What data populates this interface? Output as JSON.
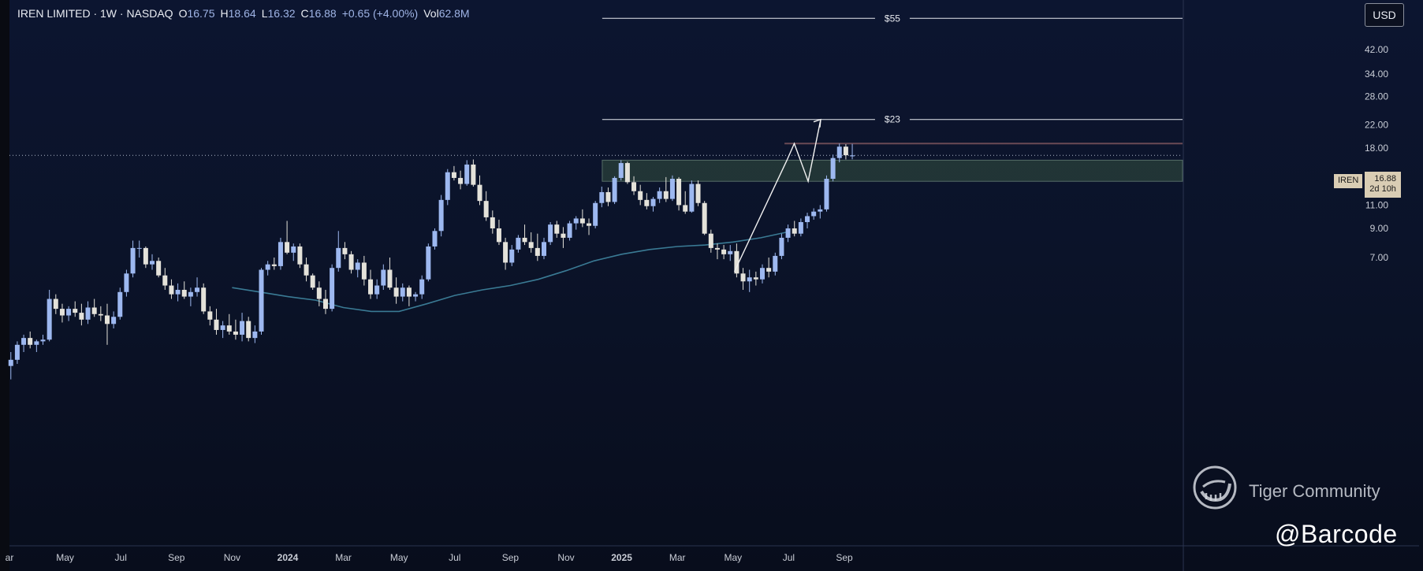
{
  "legend": {
    "name": "IREN LIMITED · 1W · NASDAQ",
    "o_label": "O",
    "o": "16.75",
    "h_label": "H",
    "h": "18.64",
    "l_label": "L",
    "l": "16.32",
    "c_label": "C",
    "c": "16.88",
    "chg": "+0.65 (+4.00%)",
    "vol_label": "Vol",
    "vol": "62.8M"
  },
  "currency_button": "USD",
  "price_badge": {
    "ticker": "IREN",
    "price": "16.88",
    "countdown": "2d 10h"
  },
  "watermark": {
    "brand": "Tiger Community",
    "handle": "@Barcode"
  },
  "colors": {
    "bull": "#9db8f0",
    "bear": "#e4e2da",
    "ema": "#3a7a94",
    "zone": "#35503f",
    "zone_edge": "#6a4a55"
  },
  "chart_data": {
    "type": "candlestick",
    "symbol": "IREN",
    "interval": "1W",
    "y_scale": "log",
    "ylim": [
      1.0,
      60
    ],
    "y_ticks": [
      42,
      34,
      28,
      22,
      18,
      14,
      11,
      9,
      7
    ],
    "y_tick_labels": [
      "42.00",
      "34.00",
      "28.00",
      "22.00",
      "18.00",
      "14.00",
      "11.00",
      "9.00",
      "7.00"
    ],
    "x_ticks": [
      {
        "label": "ar",
        "t": -1.0
      },
      {
        "label": "May",
        "t": 1.0
      },
      {
        "label": "Jul",
        "t": 3.0
      },
      {
        "label": "Sep",
        "t": 5.0
      },
      {
        "label": "Nov",
        "t": 7.0
      },
      {
        "label": "2024",
        "t": 9.0
      },
      {
        "label": "Mar",
        "t": 11.0
      },
      {
        "label": "May",
        "t": 13.0
      },
      {
        "label": "Jul",
        "t": 15.0
      },
      {
        "label": "Sep",
        "t": 17.0
      },
      {
        "label": "Nov",
        "t": 19.0
      },
      {
        "label": "2025",
        "t": 21.0
      },
      {
        "label": "Mar",
        "t": 23.0
      },
      {
        "label": "May",
        "t": 25.0
      },
      {
        "label": "Jul",
        "t": 27.0
      },
      {
        "label": "Sep",
        "t": 29.0
      }
    ],
    "start_t": -0.95,
    "step_t": 0.2308,
    "candles": [
      [
        2.75,
        3.1,
        2.45,
        2.9
      ],
      [
        2.9,
        3.4,
        2.8,
        3.3
      ],
      [
        3.3,
        3.6,
        3.1,
        3.5
      ],
      [
        3.5,
        3.7,
        3.2,
        3.3
      ],
      [
        3.3,
        3.45,
        3.1,
        3.4
      ],
      [
        3.4,
        3.6,
        3.3,
        3.45
      ],
      [
        3.45,
        5.3,
        3.4,
        4.9
      ],
      [
        4.9,
        5.1,
        4.3,
        4.5
      ],
      [
        4.5,
        4.7,
        4.0,
        4.25
      ],
      [
        4.25,
        4.6,
        4.05,
        4.5
      ],
      [
        4.5,
        4.8,
        4.2,
        4.35
      ],
      [
        4.35,
        4.7,
        3.9,
        4.1
      ],
      [
        4.1,
        4.8,
        3.95,
        4.55
      ],
      [
        4.55,
        4.9,
        4.2,
        4.3
      ],
      [
        4.3,
        4.6,
        4.05,
        4.25
      ],
      [
        4.25,
        4.7,
        3.3,
        3.95
      ],
      [
        3.95,
        4.4,
        3.8,
        4.2
      ],
      [
        4.2,
        5.4,
        4.1,
        5.2
      ],
      [
        5.2,
        6.3,
        5.0,
        6.1
      ],
      [
        6.1,
        8.1,
        5.9,
        7.6
      ],
      [
        7.6,
        8.1,
        7.0,
        7.6
      ],
      [
        7.6,
        7.7,
        6.4,
        6.6
      ],
      [
        6.6,
        7.2,
        6.3,
        6.8
      ],
      [
        6.8,
        7.0,
        5.9,
        6.0
      ],
      [
        6.0,
        6.4,
        5.3,
        5.5
      ],
      [
        5.5,
        5.8,
        4.9,
        5.1
      ],
      [
        5.1,
        5.6,
        4.8,
        5.3
      ],
      [
        5.3,
        5.7,
        4.9,
        5.0
      ],
      [
        5.0,
        5.4,
        4.6,
        5.2
      ],
      [
        5.2,
        5.9,
        5.0,
        5.4
      ],
      [
        5.4,
        5.6,
        4.3,
        4.4
      ],
      [
        4.4,
        4.6,
        3.9,
        4.1
      ],
      [
        4.1,
        4.5,
        3.6,
        3.75
      ],
      [
        3.75,
        4.05,
        3.5,
        3.9
      ],
      [
        3.9,
        4.3,
        3.6,
        3.7
      ],
      [
        3.7,
        4.1,
        3.45,
        3.6
      ],
      [
        3.6,
        4.35,
        3.4,
        4.05
      ],
      [
        4.05,
        4.2,
        3.4,
        3.5
      ],
      [
        3.5,
        3.9,
        3.35,
        3.7
      ],
      [
        3.7,
        6.4,
        3.6,
        6.3
      ],
      [
        6.3,
        6.8,
        6.0,
        6.6
      ],
      [
        6.6,
        7.0,
        6.3,
        6.5
      ],
      [
        6.5,
        8.3,
        6.3,
        8.0
      ],
      [
        8.0,
        9.6,
        7.2,
        7.3
      ],
      [
        7.3,
        7.9,
        6.8,
        7.7
      ],
      [
        7.7,
        7.9,
        6.4,
        6.6
      ],
      [
        6.6,
        7.0,
        5.7,
        6.0
      ],
      [
        6.0,
        6.1,
        5.3,
        5.4
      ],
      [
        5.4,
        5.7,
        4.6,
        4.9
      ],
      [
        4.9,
        5.3,
        4.3,
        4.5
      ],
      [
        4.5,
        6.6,
        4.4,
        6.4
      ],
      [
        6.4,
        8.8,
        6.2,
        7.6
      ],
      [
        7.6,
        8.0,
        6.9,
        7.2
      ],
      [
        7.2,
        7.4,
        6.1,
        6.3
      ],
      [
        6.3,
        6.9,
        5.9,
        6.7
      ],
      [
        6.7,
        7.1,
        5.5,
        5.8
      ],
      [
        5.8,
        6.3,
        4.9,
        5.1
      ],
      [
        5.1,
        5.8,
        4.9,
        5.5
      ],
      [
        5.5,
        6.6,
        5.3,
        6.3
      ],
      [
        6.3,
        7.0,
        5.3,
        5.4
      ],
      [
        5.4,
        5.9,
        4.7,
        5.0
      ],
      [
        5.0,
        5.6,
        4.8,
        5.4
      ],
      [
        5.4,
        5.5,
        4.6,
        5.0
      ],
      [
        5.0,
        5.2,
        4.8,
        5.1
      ],
      [
        5.1,
        6.0,
        4.9,
        5.8
      ],
      [
        5.8,
        7.9,
        5.7,
        7.7
      ],
      [
        7.7,
        9.0,
        7.5,
        8.8
      ],
      [
        8.8,
        12.0,
        8.4,
        11.5
      ],
      [
        11.5,
        15.0,
        11.0,
        14.6
      ],
      [
        14.6,
        15.4,
        13.6,
        13.9
      ],
      [
        13.9,
        14.8,
        12.6,
        13.2
      ],
      [
        13.2,
        16.2,
        13.0,
        15.6
      ],
      [
        15.6,
        16.3,
        12.9,
        13.1
      ],
      [
        13.1,
        14.2,
        11.0,
        11.4
      ],
      [
        11.4,
        12.4,
        9.6,
        9.9
      ],
      [
        9.9,
        10.5,
        8.6,
        9.0
      ],
      [
        9.0,
        9.7,
        7.8,
        8.0
      ],
      [
        8.0,
        8.3,
        6.3,
        6.7
      ],
      [
        6.7,
        7.8,
        6.5,
        7.5
      ],
      [
        7.5,
        8.5,
        7.3,
        8.3
      ],
      [
        8.3,
        9.3,
        7.8,
        8.0
      ],
      [
        8.0,
        8.7,
        7.3,
        7.6
      ],
      [
        7.6,
        8.6,
        6.8,
        7.1
      ],
      [
        7.1,
        8.3,
        6.9,
        8.0
      ],
      [
        8.0,
        9.5,
        7.8,
        9.3
      ],
      [
        9.3,
        9.6,
        8.3,
        8.6
      ],
      [
        8.6,
        9.1,
        7.6,
        8.3
      ],
      [
        8.3,
        9.6,
        8.1,
        9.4
      ],
      [
        9.4,
        10.0,
        8.9,
        9.8
      ],
      [
        9.8,
        10.6,
        9.1,
        9.4
      ],
      [
        9.4,
        9.8,
        8.5,
        9.2
      ],
      [
        9.2,
        11.4,
        9.0,
        11.2
      ],
      [
        11.2,
        12.9,
        10.8,
        12.3
      ],
      [
        12.3,
        12.8,
        10.9,
        11.3
      ],
      [
        11.3,
        14.1,
        11.1,
        13.9
      ],
      [
        13.9,
        16.2,
        13.6,
        15.8
      ],
      [
        15.8,
        16.0,
        13.2,
        13.4
      ],
      [
        13.4,
        14.1,
        12.0,
        12.4
      ],
      [
        12.4,
        13.1,
        11.0,
        11.5
      ],
      [
        11.5,
        12.2,
        10.6,
        10.9
      ],
      [
        10.9,
        11.8,
        10.4,
        11.6
      ],
      [
        11.6,
        12.8,
        11.2,
        12.4
      ],
      [
        12.4,
        14.0,
        11.3,
        11.6
      ],
      [
        11.6,
        14.2,
        11.4,
        13.8
      ],
      [
        13.8,
        14.0,
        10.5,
        11.0
      ],
      [
        11.0,
        12.4,
        10.2,
        10.4
      ],
      [
        10.4,
        13.6,
        10.3,
        13.2
      ],
      [
        13.2,
        13.6,
        10.9,
        11.2
      ],
      [
        11.2,
        11.4,
        8.5,
        8.6
      ],
      [
        8.6,
        8.9,
        7.3,
        7.6
      ],
      [
        7.6,
        7.9,
        6.9,
        7.5
      ],
      [
        7.5,
        7.8,
        6.9,
        7.2
      ],
      [
        7.2,
        7.8,
        6.8,
        7.4
      ],
      [
        7.4,
        7.9,
        5.9,
        6.1
      ],
      [
        6.1,
        6.4,
        5.3,
        5.7
      ],
      [
        5.7,
        6.3,
        5.2,
        5.9
      ],
      [
        5.9,
        6.2,
        5.5,
        5.8
      ],
      [
        5.8,
        6.6,
        5.6,
        6.4
      ],
      [
        6.4,
        7.0,
        5.9,
        6.2
      ],
      [
        6.2,
        7.3,
        6.0,
        7.1
      ],
      [
        7.1,
        8.6,
        6.9,
        8.3
      ],
      [
        8.3,
        9.3,
        8.0,
        9.0
      ],
      [
        9.0,
        9.6,
        8.4,
        8.6
      ],
      [
        8.6,
        9.8,
        8.4,
        9.5
      ],
      [
        9.5,
        10.3,
        9.0,
        10.0
      ],
      [
        10.0,
        10.7,
        9.7,
        10.4
      ],
      [
        10.4,
        11.0,
        9.8,
        10.6
      ],
      [
        10.6,
        14.2,
        10.4,
        13.8
      ],
      [
        13.8,
        17.0,
        13.5,
        16.5
      ],
      [
        16.5,
        18.7,
        15.9,
        18.2
      ],
      [
        18.2,
        18.6,
        16.3,
        16.9
      ],
      [
        16.75,
        18.64,
        16.32,
        16.88
      ]
    ],
    "ema": [
      [
        7.0,
        5.4
      ],
      [
        8.0,
        5.2
      ],
      [
        9.0,
        5.0
      ],
      [
        10.0,
        4.85
      ],
      [
        11.0,
        4.55
      ],
      [
        12.0,
        4.4
      ],
      [
        13.0,
        4.4
      ],
      [
        14.0,
        4.7
      ],
      [
        15.0,
        5.05
      ],
      [
        16.0,
        5.3
      ],
      [
        17.0,
        5.5
      ],
      [
        18.0,
        5.8
      ],
      [
        19.0,
        6.25
      ],
      [
        20.0,
        6.8
      ],
      [
        21.0,
        7.2
      ],
      [
        22.0,
        7.5
      ],
      [
        23.0,
        7.7
      ],
      [
        24.0,
        7.8
      ],
      [
        25.0,
        8.0
      ],
      [
        26.0,
        8.3
      ],
      [
        26.9,
        8.7
      ]
    ],
    "current_price": 16.88,
    "levels": [
      {
        "label": "$55",
        "price": 55,
        "t_from": 20.3
      },
      {
        "label": "$23",
        "price": 23,
        "t_from": 20.3
      }
    ],
    "demand_zone": {
      "low": 13.5,
      "high": 16.2,
      "t_from": 20.3
    },
    "resistance": {
      "price": 18.7,
      "t_from": 26.85
    },
    "trend_line": [
      [
        25.05,
        6.2
      ],
      [
        26.95,
        16.3
      ]
    ],
    "projection": [
      [
        26.95,
        16.3
      ],
      [
        27.2,
        18.7
      ],
      [
        27.7,
        13.5
      ],
      [
        28.15,
        23.0
      ]
    ],
    "ylim_note": ""
  }
}
